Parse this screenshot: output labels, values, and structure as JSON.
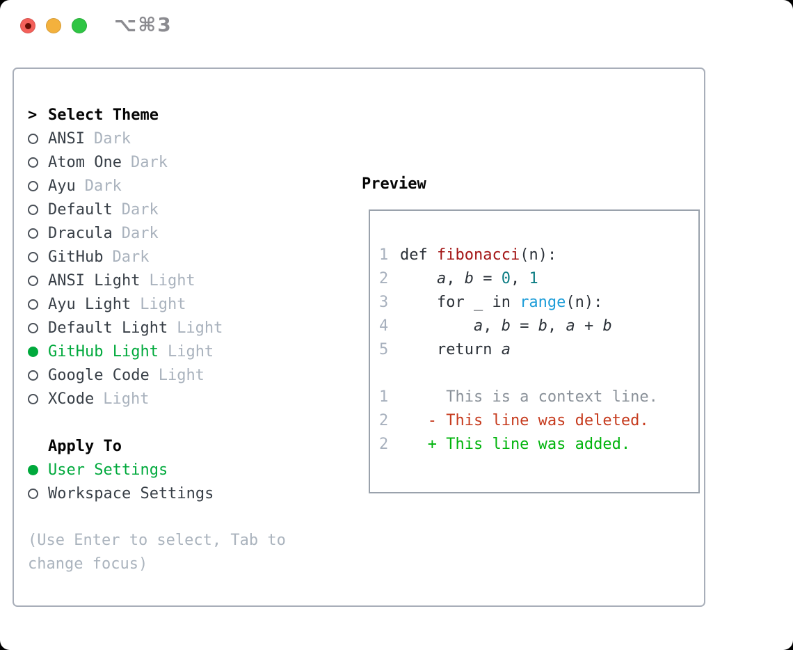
{
  "window": {
    "title": "⌥⌘3"
  },
  "titlebar": {
    "buttons": [
      {
        "name": "close",
        "color_key": "traffic-red",
        "has_dot": true
      },
      {
        "name": "minimize",
        "color_key": "traffic-yellow",
        "has_dot": false
      },
      {
        "name": "zoom",
        "color_key": "traffic-green",
        "has_dot": false
      }
    ]
  },
  "theme_panel": {
    "header_prefix": ">",
    "header_label": "Select Theme",
    "themes": [
      {
        "name": "ANSI",
        "variant": "Dark",
        "selected": false
      },
      {
        "name": "Atom One",
        "variant": "Dark",
        "selected": false
      },
      {
        "name": "Ayu",
        "variant": "Dark",
        "selected": false
      },
      {
        "name": "Default",
        "variant": "Dark",
        "selected": false
      },
      {
        "name": "Dracula",
        "variant": "Dark",
        "selected": false
      },
      {
        "name": "GitHub",
        "variant": "Dark",
        "selected": false
      },
      {
        "name": "ANSI Light",
        "variant": "Light",
        "selected": false
      },
      {
        "name": "Ayu Light",
        "variant": "Light",
        "selected": false
      },
      {
        "name": "Default Light",
        "variant": "Light",
        "selected": false
      },
      {
        "name": "GitHub Light",
        "variant": "Light",
        "selected": true
      },
      {
        "name": "Google Code",
        "variant": "Light",
        "selected": false
      },
      {
        "name": "XCode",
        "variant": "Light",
        "selected": false
      }
    ],
    "apply_to": {
      "label": "Apply To",
      "options": [
        {
          "name": "User Settings",
          "selected": true
        },
        {
          "name": "Workspace Settings",
          "selected": false
        }
      ]
    },
    "hint": "(Use Enter to select, Tab to change focus)"
  },
  "preview": {
    "label": "Preview",
    "lines": [
      {
        "num": "1",
        "tokens": [
          {
            "t": "def ",
            "c": "pl"
          },
          {
            "t": "fibonacci",
            "c": "fn"
          },
          {
            "t": "(n):",
            "c": "pl"
          }
        ]
      },
      {
        "num": "2",
        "tokens": [
          {
            "t": "    ",
            "c": "pl"
          },
          {
            "t": "a",
            "c": "var"
          },
          {
            "t": ", ",
            "c": "pl"
          },
          {
            "t": "b",
            "c": "var"
          },
          {
            "t": " = ",
            "c": "pl"
          },
          {
            "t": "0",
            "c": "num"
          },
          {
            "t": ", ",
            "c": "pl"
          },
          {
            "t": "1",
            "c": "num"
          }
        ]
      },
      {
        "num": "3",
        "tokens": [
          {
            "t": "    for _ in ",
            "c": "pl"
          },
          {
            "t": "range",
            "c": "call"
          },
          {
            "t": "(n):",
            "c": "pl"
          }
        ]
      },
      {
        "num": "4",
        "tokens": [
          {
            "t": "        ",
            "c": "pl"
          },
          {
            "t": "a",
            "c": "var"
          },
          {
            "t": ", ",
            "c": "pl"
          },
          {
            "t": "b",
            "c": "var"
          },
          {
            "t": " = ",
            "c": "pl"
          },
          {
            "t": "b",
            "c": "var"
          },
          {
            "t": ", ",
            "c": "pl"
          },
          {
            "t": "a",
            "c": "var"
          },
          {
            "t": " + ",
            "c": "pl"
          },
          {
            "t": "b",
            "c": "var"
          }
        ]
      },
      {
        "num": "5",
        "tokens": [
          {
            "t": "    return ",
            "c": "pl"
          },
          {
            "t": "a",
            "c": "var"
          }
        ]
      },
      {
        "num": "",
        "tokens": []
      },
      {
        "num": "1",
        "tokens": [
          {
            "t": "     This is a context line.",
            "c": "context"
          }
        ]
      },
      {
        "num": "2",
        "tokens": [
          {
            "t": "   - This line was deleted.",
            "c": "deleted"
          }
        ]
      },
      {
        "num": "2",
        "tokens": [
          {
            "t": "   + This line was added.",
            "c": "added"
          }
        ]
      }
    ]
  },
  "colors": {
    "ui-green": "#00a93c",
    "diff-green": "#00b40c",
    "diff-red": "#c63b1e",
    "fn-red": "#a31515",
    "num-teal": "#0c7d84",
    "call-blue": "#1b9cd8",
    "traffic-red": "#f4605a",
    "traffic-yellow": "#f3b13d",
    "traffic-green": "#2fc544"
  }
}
